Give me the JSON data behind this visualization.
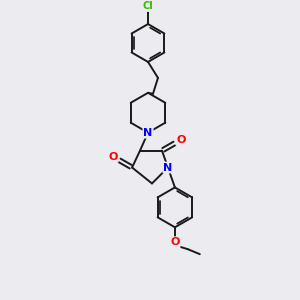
{
  "background_color": "#ebebf0",
  "bond_color": "#1a1a1a",
  "atom_colors": {
    "N": "#0000ff",
    "O": "#ff0000",
    "Cl": "#33bb00",
    "C": "#1a1a1a"
  },
  "figsize": [
    3.0,
    3.0
  ],
  "dpi": 100,
  "lw": 1.4
}
